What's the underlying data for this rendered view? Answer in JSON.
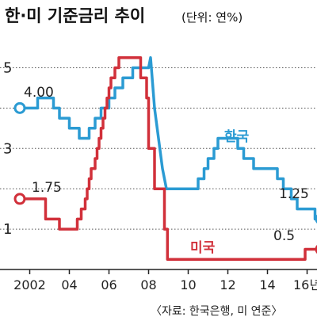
{
  "title": {
    "main": "한·미 기준금리 추이",
    "unit": "(단위: 연%)"
  },
  "source": "〈자료: 한국은행, 미 연준〉",
  "chart_data": {
    "type": "line",
    "title": "한·미 기준금리 추이",
    "unit": "(단위: 연%)",
    "ylim": [
      0,
      5.5
    ],
    "xlim": [
      2000.5,
      2016.5
    ],
    "yticks": [
      {
        "value": 5,
        "label": "5"
      },
      {
        "value": 3,
        "label": "3"
      },
      {
        "value": 1,
        "label": "1"
      }
    ],
    "y_gridlines": [
      1,
      2,
      3,
      4,
      5
    ],
    "xticks": [
      {
        "value": 2002,
        "label": "2002"
      },
      {
        "value": 2004,
        "label": "04"
      },
      {
        "value": 2006,
        "label": "06"
      },
      {
        "value": 2008,
        "label": "08"
      },
      {
        "value": 2010,
        "label": "10"
      },
      {
        "value": 2012,
        "label": "12"
      },
      {
        "value": 2014,
        "label": "14"
      },
      {
        "value": 2016,
        "label": "16년"
      }
    ],
    "series": [
      {
        "name": "한국",
        "color": "#2b9bd3",
        "start_label": "4.00",
        "end_label": "1.25",
        "points": [
          [
            2001.5,
            4.0
          ],
          [
            2002.0,
            4.0
          ],
          [
            2002.4,
            4.0
          ],
          [
            2002.4,
            4.25
          ],
          [
            2003.2,
            4.25
          ],
          [
            2003.2,
            4.0
          ],
          [
            2003.5,
            4.0
          ],
          [
            2003.5,
            3.75
          ],
          [
            2004.0,
            3.75
          ],
          [
            2004.0,
            3.5
          ],
          [
            2004.5,
            3.5
          ],
          [
            2004.5,
            3.25
          ],
          [
            2005.0,
            3.25
          ],
          [
            2005.0,
            3.5
          ],
          [
            2005.3,
            3.5
          ],
          [
            2005.3,
            3.75
          ],
          [
            2005.6,
            3.75
          ],
          [
            2005.6,
            4.0
          ],
          [
            2006.0,
            4.0
          ],
          [
            2006.0,
            4.25
          ],
          [
            2006.3,
            4.25
          ],
          [
            2006.3,
            4.5
          ],
          [
            2006.7,
            4.5
          ],
          [
            2006.7,
            4.75
          ],
          [
            2007.2,
            4.75
          ],
          [
            2007.2,
            5.0
          ],
          [
            2007.9,
            5.0
          ],
          [
            2008.0,
            5.0
          ],
          [
            2008.1,
            5.25
          ],
          [
            2008.3,
            4.0
          ],
          [
            2008.7,
            2.5
          ],
          [
            2008.9,
            2.0
          ],
          [
            2009.2,
            2.0
          ],
          [
            2010.5,
            2.0
          ],
          [
            2010.5,
            2.25
          ],
          [
            2010.8,
            2.25
          ],
          [
            2010.8,
            2.5
          ],
          [
            2011.0,
            2.5
          ],
          [
            2011.0,
            2.75
          ],
          [
            2011.3,
            2.75
          ],
          [
            2011.3,
            3.0
          ],
          [
            2011.5,
            3.0
          ],
          [
            2011.5,
            3.25
          ],
          [
            2012.5,
            3.25
          ],
          [
            2012.5,
            3.0
          ],
          [
            2012.8,
            3.0
          ],
          [
            2012.8,
            2.75
          ],
          [
            2013.3,
            2.75
          ],
          [
            2013.3,
            2.5
          ],
          [
            2014.5,
            2.5
          ],
          [
            2014.5,
            2.25
          ],
          [
            2014.8,
            2.25
          ],
          [
            2014.8,
            2.0
          ],
          [
            2015.2,
            2.0
          ],
          [
            2015.2,
            1.75
          ],
          [
            2015.5,
            1.75
          ],
          [
            2015.5,
            1.5
          ],
          [
            2016.4,
            1.5
          ],
          [
            2016.4,
            1.25
          ],
          [
            2016.7,
            1.25
          ]
        ]
      },
      {
        "name": "미국",
        "color": "#d1303a",
        "start_label": "1.75",
        "end_label": "0.5",
        "points": [
          [
            2001.5,
            1.75
          ],
          [
            2002.0,
            1.75
          ],
          [
            2002.8,
            1.75
          ],
          [
            2002.8,
            1.25
          ],
          [
            2003.5,
            1.25
          ],
          [
            2003.5,
            1.0
          ],
          [
            2004.4,
            1.0
          ],
          [
            2004.4,
            1.25
          ],
          [
            2004.6,
            1.25
          ],
          [
            2004.6,
            1.5
          ],
          [
            2004.8,
            1.5
          ],
          [
            2004.8,
            1.75
          ],
          [
            2004.9,
            1.75
          ],
          [
            2004.9,
            2.0
          ],
          [
            2005.0,
            2.0
          ],
          [
            2005.0,
            2.25
          ],
          [
            2005.1,
            2.25
          ],
          [
            2005.1,
            2.5
          ],
          [
            2005.3,
            2.5
          ],
          [
            2005.3,
            2.75
          ],
          [
            2005.4,
            2.75
          ],
          [
            2005.4,
            3.0
          ],
          [
            2005.5,
            3.0
          ],
          [
            2005.5,
            3.25
          ],
          [
            2005.6,
            3.25
          ],
          [
            2005.6,
            3.5
          ],
          [
            2005.7,
            3.5
          ],
          [
            2005.7,
            3.75
          ],
          [
            2005.8,
            3.75
          ],
          [
            2005.8,
            4.0
          ],
          [
            2005.9,
            4.0
          ],
          [
            2005.9,
            4.25
          ],
          [
            2006.0,
            4.25
          ],
          [
            2006.0,
            4.5
          ],
          [
            2006.1,
            4.5
          ],
          [
            2006.1,
            4.75
          ],
          [
            2006.3,
            4.75
          ],
          [
            2006.3,
            5.0
          ],
          [
            2006.5,
            5.0
          ],
          [
            2006.5,
            5.25
          ],
          [
            2007.6,
            5.25
          ],
          [
            2007.6,
            4.75
          ],
          [
            2007.9,
            4.75
          ],
          [
            2007.9,
            4.25
          ],
          [
            2008.0,
            4.25
          ],
          [
            2008.0,
            3.0
          ],
          [
            2008.3,
            3.0
          ],
          [
            2008.3,
            2.0
          ],
          [
            2008.8,
            2.0
          ],
          [
            2008.8,
            1.0
          ],
          [
            2008.95,
            1.0
          ],
          [
            2008.95,
            0.25
          ],
          [
            2015.9,
            0.25
          ],
          [
            2015.9,
            0.5
          ],
          [
            2016.7,
            0.5
          ]
        ]
      }
    ]
  }
}
